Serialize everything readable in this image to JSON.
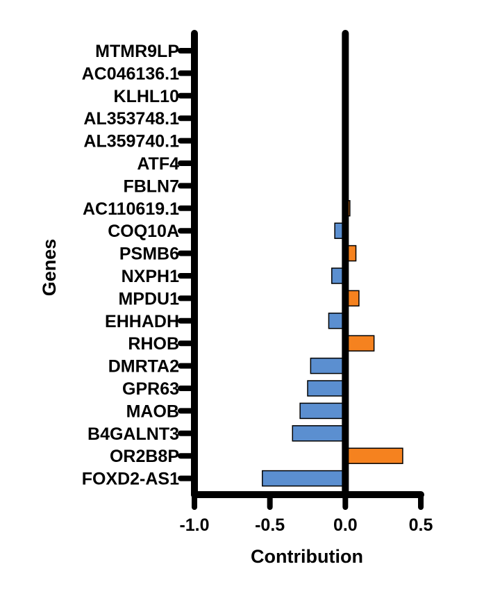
{
  "chart_data": {
    "type": "bar",
    "orientation": "horizontal",
    "xlabel": "Contribution",
    "ylabel": "Genes",
    "xlim": [
      -1.0,
      0.5
    ],
    "xticks": [
      "-1.0",
      "-0.5",
      "0.0",
      "0.5"
    ],
    "grid": false,
    "colors": {
      "positive": "#f5821f",
      "negative": "#5b8fd0"
    },
    "categories": [
      "MTMR9LP",
      "AC046136.1",
      "KLHL10",
      "AL353748.1",
      "AL359740.1",
      "ATF4",
      "FBLN7",
      "AC110619.1",
      "COQ10A",
      "PSMB6",
      "NXPH1",
      "MPDU1",
      "EHHADH",
      "RHOB",
      "DMRTA2",
      "GPR63",
      "MAOB",
      "B4GALNT3",
      "OR2B8P",
      "FOXD2-AS1"
    ],
    "values": [
      0,
      0,
      0,
      0,
      0,
      0.005,
      -0.005,
      0.03,
      -0.07,
      0.07,
      -0.09,
      0.09,
      -0.11,
      0.19,
      -0.23,
      -0.25,
      -0.3,
      -0.35,
      0.38,
      -0.55
    ]
  }
}
